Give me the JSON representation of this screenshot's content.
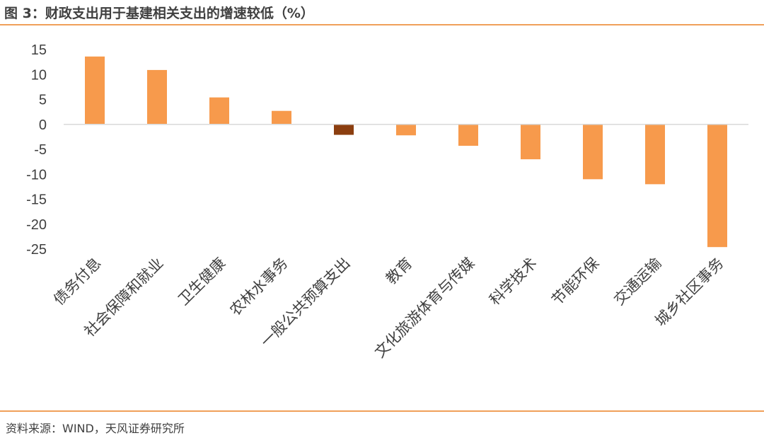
{
  "header": {
    "title": "图 3：财政支出用于基建相关支出的增速较低（%）"
  },
  "footer": {
    "source": "资料来源：WIND，天风证券研究所"
  },
  "colors": {
    "bar": "#f79a4c",
    "highlight": "#8b3e0f",
    "rule": "#f0a05a",
    "axis": "#d9d9d9"
  },
  "chart_data": {
    "type": "bar",
    "categories": [
      "债务付息",
      "社会保障和就业",
      "卫生健康",
      "农林水事务",
      "一般公共预算支出",
      "教育",
      "文化旅游体育与传媒",
      "科学技术",
      "节能环保",
      "交通运输",
      "城乡社区事务"
    ],
    "values": [
      13.6,
      10.9,
      5.4,
      2.7,
      -2.1,
      -2.2,
      -4.3,
      -7.0,
      -11.0,
      -12.0,
      -24.6
    ],
    "highlight_index": 4,
    "ylim": [
      -25,
      15
    ],
    "yticks": [
      15,
      10,
      5,
      0,
      -5,
      -10,
      -15,
      -20,
      -25
    ],
    "grid": false,
    "legend": "none"
  }
}
